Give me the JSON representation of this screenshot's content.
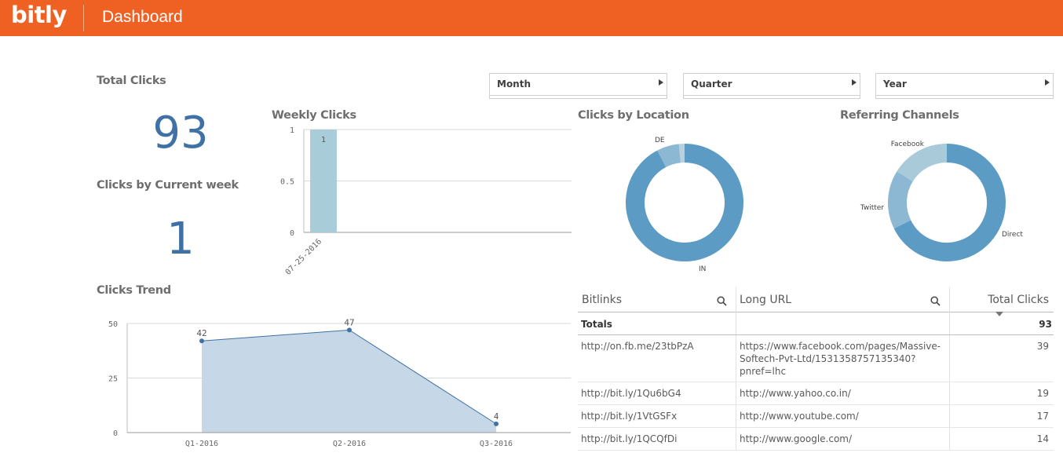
{
  "header": {
    "logo": "bitly",
    "title": "Dashboard"
  },
  "kpis": {
    "total_clicks": {
      "title": "Total Clicks",
      "value": "93"
    },
    "current_week": {
      "title": "Clicks by Current week",
      "value": "1"
    }
  },
  "filters": [
    {
      "label": "Month"
    },
    {
      "label": "Quarter"
    },
    {
      "label": "Year"
    }
  ],
  "colors": {
    "header": "#ee6123",
    "kpi": "#3f71a4",
    "bar": "#a8cdd8",
    "area": "#c6d7e7",
    "line": "#3f71a4",
    "donut_main": "#5b9bc4"
  },
  "chart_data": [
    {
      "type": "bar",
      "title": "Weekly Clicks",
      "categories": [
        "07-25-2016"
      ],
      "values": [
        1
      ],
      "ylim": [
        0,
        1
      ],
      "yticks": [
        "0",
        "0.5",
        "1"
      ],
      "data_labels": [
        "1"
      ],
      "grid": true
    },
    {
      "type": "area",
      "title": "Clicks Trend",
      "categories": [
        "Q1-2016",
        "Q2-2016",
        "Q3-2016"
      ],
      "values": [
        42,
        47,
        4
      ],
      "data_labels": [
        "42",
        "47",
        "4"
      ],
      "ylim": [
        0,
        50
      ],
      "yticks": [
        "0",
        "25",
        "50"
      ],
      "grid": true
    },
    {
      "type": "pie",
      "title": "Clicks by Location",
      "labels": [
        "IN",
        "DE",
        ""
      ],
      "values": [
        90,
        6,
        1.5
      ],
      "colors": [
        "#5b9bc4",
        "#8cb8d3",
        "#b9d1de"
      ],
      "donut": true
    },
    {
      "type": "pie",
      "title": "Referring Channels",
      "labels": [
        "Direct",
        "Twitter",
        "Facebook"
      ],
      "values": [
        63,
        15,
        15
      ],
      "colors": [
        "#5b9bc4",
        "#8cb8d3",
        "#a9cad8"
      ],
      "donut": true
    }
  ],
  "table": {
    "headers": [
      "Bitlinks",
      "Long URL",
      "Total Clicks"
    ],
    "totals_label": "Totals",
    "totals_value": "93",
    "rows": [
      {
        "bitlink": "http://on.fb.me/23tbPzA",
        "long_url": [
          "https://www.facebook.com/pages/Massive-",
          "Softech-Pvt-Ltd/1531358757135340?",
          "pnref=lhc"
        ],
        "clicks": "39"
      },
      {
        "bitlink": "http://bit.ly/1Qu6bG4",
        "long_url": [
          "http://www.yahoo.co.in/"
        ],
        "clicks": "19"
      },
      {
        "bitlink": "http://bit.ly/1VtGSFx",
        "long_url": [
          "http://www.youtube.com/"
        ],
        "clicks": "17"
      },
      {
        "bitlink": "http://bit.ly/1QCQfDi",
        "long_url": [
          "http://www.google.com/"
        ],
        "clicks": "14"
      }
    ]
  }
}
